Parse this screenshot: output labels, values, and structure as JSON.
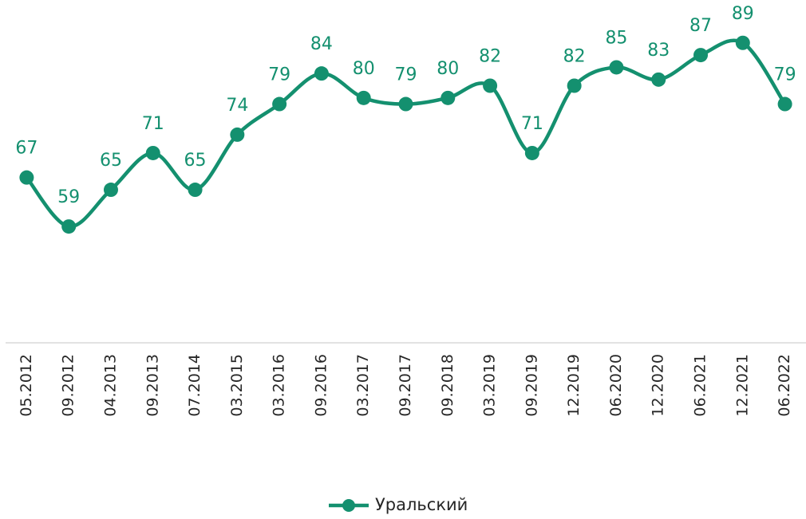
{
  "chart_data": {
    "type": "line",
    "categories": [
      "05.2012",
      "09.2012",
      "04.2013",
      "09.2013",
      "07.2014",
      "03.2015",
      "03.2016",
      "09.2016",
      "03.2017",
      "09.2017",
      "09.2018",
      "03.2019",
      "09.2019",
      "12.2019",
      "06.2020",
      "12.2020",
      "06.2021",
      "12.2021",
      "06.2022"
    ],
    "series": [
      {
        "name": "Уральский",
        "color": "#14906f",
        "values": [
          67,
          59,
          65,
          71,
          65,
          74,
          79,
          84,
          80,
          79,
          80,
          82,
          71,
          82,
          85,
          83,
          87,
          89,
          79
        ]
      }
    ],
    "ylim": [
      40,
      96
    ],
    "legend": "bottom",
    "smooth": true
  }
}
